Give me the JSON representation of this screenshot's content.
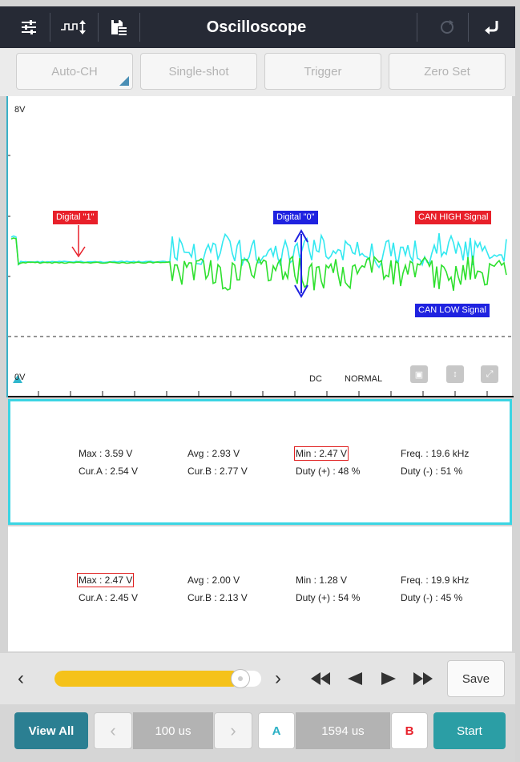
{
  "header": {
    "title": "Oscilloscope"
  },
  "toolbar": {
    "auto_ch": "Auto-CH",
    "single_shot": "Single-shot",
    "trigger": "Trigger",
    "zero_set": "Zero Set"
  },
  "scope": {
    "scale_top": "8V",
    "scale_bottom": "0V",
    "coupling": "DC",
    "mode": "NORMAL",
    "labels": {
      "digital1": "Digital \"1\"",
      "digital0": "Digital \"0\"",
      "can_high": "CAN HIGH Signal",
      "can_low": "CAN LOW Signal"
    },
    "colors": {
      "can_high": "#33e8f0",
      "can_low": "#2ee02e",
      "label_red": "#e8202a",
      "label_blue": "#1f22e0"
    }
  },
  "channel_a": {
    "max": "Max : 3.59 V",
    "avg": "Avg : 2.93 V",
    "min": "Min : 2.47 V",
    "freq": "Freq. : 19.6 kHz",
    "cur_a": "Cur.A : 2.54 V",
    "cur_b": "Cur.B : 2.77 V",
    "duty_pos": "Duty (+) : 48 %",
    "duty_neg": "Duty (-) : 51 %"
  },
  "channel_b": {
    "max": "Max : 2.47 V",
    "avg": "Avg : 2.00 V",
    "min": "Min : 1.28 V",
    "freq": "Freq. : 19.9 kHz",
    "cur_a": "Cur.A : 2.45 V",
    "cur_b": "Cur.B : 2.13 V",
    "duty_pos": "Duty (+) : 54 %",
    "duty_neg": "Duty (-) : 45 %"
  },
  "playback": {
    "save": "Save",
    "progress": 0.9
  },
  "bottom": {
    "view_all": "View All",
    "timebase": "100 us",
    "cursor_a": "A",
    "cursor_delta": "1594 us",
    "cursor_b": "B",
    "start": "Start"
  }
}
